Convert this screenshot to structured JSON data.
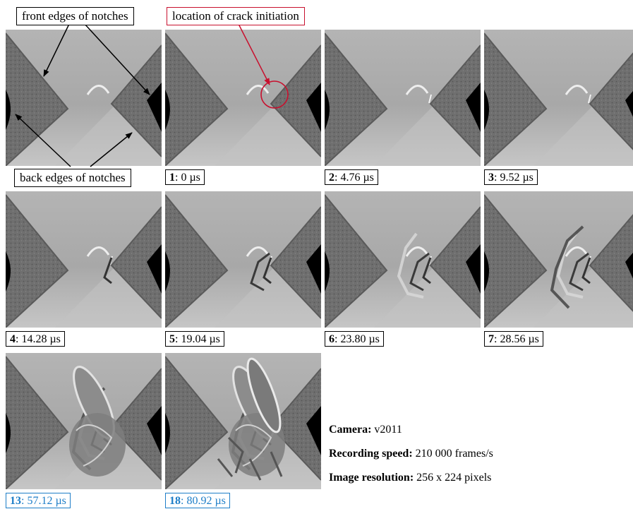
{
  "annotations": {
    "front_edges": "front edges of notches",
    "back_edges": "back edges of notches",
    "crack_initiation": "location of crack initiation"
  },
  "frames": [
    {
      "index": "1",
      "time": ": 0 µs",
      "stage": 0
    },
    {
      "index": "2",
      "time": ": 4.76 µs",
      "stage": 1
    },
    {
      "index": "3",
      "time": ": 9.52 µs",
      "stage": 2
    },
    {
      "index": "4",
      "time": ": 14.28 µs",
      "stage": 3
    },
    {
      "index": "5",
      "time": ": 19.04 µs",
      "stage": 4
    },
    {
      "index": "6",
      "time": ": 23.80 µs",
      "stage": 5
    },
    {
      "index": "7",
      "time": ": 28.56 µs",
      "stage": 6
    },
    {
      "index": "13",
      "time": ": 57.12 µs",
      "stage": 7
    },
    {
      "index": "18",
      "time": ": 80.92 µs",
      "stage": 8
    }
  ],
  "info": {
    "camera_label": "Camera:",
    "camera_value": " v2011",
    "speed_label": "Recording speed:",
    "speed_value": " 210 000 frames/s",
    "resolution_label": "Image resolution:",
    "resolution_value": " 256 x 224 pixels"
  },
  "colors": {
    "highlight_blue": "#1e7ec8",
    "annotation_red": "#c8102e"
  }
}
